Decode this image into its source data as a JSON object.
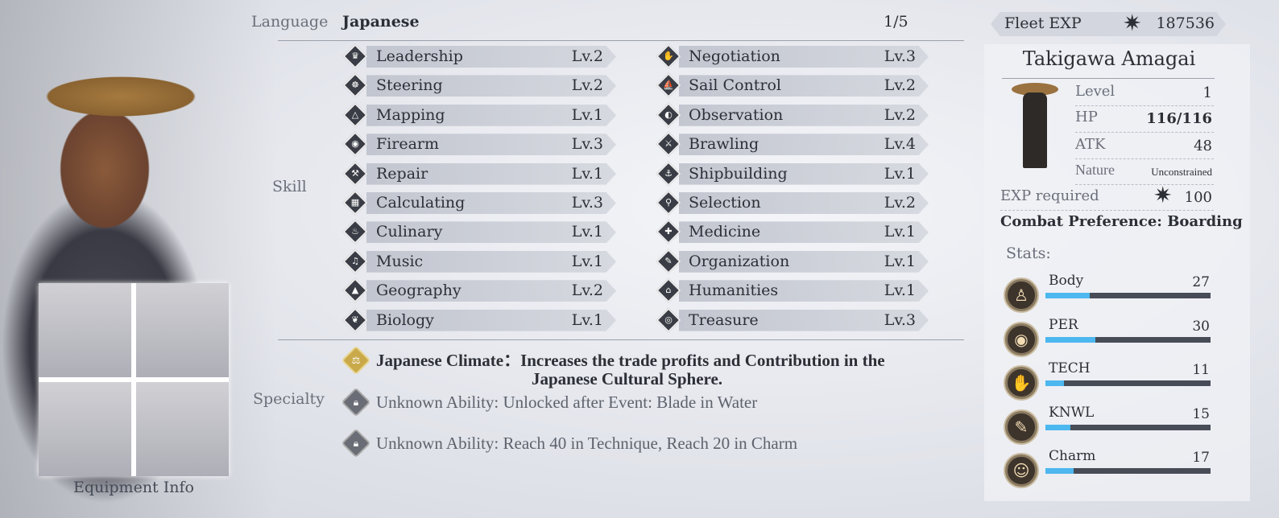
{
  "language": {
    "label": "Language",
    "value": "Japanese",
    "page": "1/5"
  },
  "skill_label": "Skill",
  "skills_left": [
    {
      "name": "Leadership",
      "level": "Lv.2",
      "icon": "leadership-icon",
      "glyph": "♛"
    },
    {
      "name": "Steering",
      "level": "Lv.2",
      "icon": "ship-wheel-icon",
      "glyph": "☸"
    },
    {
      "name": "Mapping",
      "level": "Lv.1",
      "icon": "sextant-icon",
      "glyph": "△"
    },
    {
      "name": "Firearm",
      "level": "Lv.3",
      "icon": "cannon-icon",
      "glyph": "◉"
    },
    {
      "name": "Repair",
      "level": "Lv.1",
      "icon": "hammer-icon",
      "glyph": "⚒"
    },
    {
      "name": "Calculating",
      "level": "Lv.3",
      "icon": "abacus-icon",
      "glyph": "▦"
    },
    {
      "name": "Culinary",
      "level": "Lv.1",
      "icon": "chef-hat-icon",
      "glyph": "♨"
    },
    {
      "name": "Music",
      "level": "Lv.1",
      "icon": "harp-icon",
      "glyph": "♫"
    },
    {
      "name": "Geography",
      "level": "Lv.2",
      "icon": "mountain-icon",
      "glyph": "▲"
    },
    {
      "name": "Biology",
      "level": "Lv.1",
      "icon": "leaf-icon",
      "glyph": "❦"
    }
  ],
  "skills_right": [
    {
      "name": "Negotiation",
      "level": "Lv.3",
      "icon": "handshake-icon",
      "glyph": "✋"
    },
    {
      "name": "Sail Control",
      "level": "Lv.2",
      "icon": "sail-icon",
      "glyph": "⛵"
    },
    {
      "name": "Observation",
      "level": "Lv.2",
      "icon": "telescope-icon",
      "glyph": "◐"
    },
    {
      "name": "Brawling",
      "level": "Lv.4",
      "icon": "crossed-swords-icon",
      "glyph": "⚔"
    },
    {
      "name": "Shipbuilding",
      "level": "Lv.1",
      "icon": "ship-icon",
      "glyph": "⚓"
    },
    {
      "name": "Selection",
      "level": "Lv.2",
      "icon": "magnifier-icon",
      "glyph": "⚲"
    },
    {
      "name": "Medicine",
      "level": "Lv.1",
      "icon": "medical-cross-icon",
      "glyph": "✚"
    },
    {
      "name": "Organization",
      "level": "Lv.1",
      "icon": "quill-icon",
      "glyph": "✎"
    },
    {
      "name": "Humanities",
      "level": "Lv.1",
      "icon": "temple-icon",
      "glyph": "⌂"
    },
    {
      "name": "Treasure",
      "level": "Lv.3",
      "icon": "ring-icon",
      "glyph": "◎"
    }
  ],
  "specialty_label": "Specialty",
  "specialties": [
    {
      "title": "Japanese Climate：",
      "desc": "Increases the trade profits and Contribution in the",
      "desc2": "Japanese Cultural Sphere.",
      "icon": "scales-icon",
      "locked": false
    },
    {
      "title": "Unknown Ability: ",
      "desc": "Unlocked after Event:  Blade in Water",
      "desc2": "",
      "icon": "lock-icon",
      "locked": true
    },
    {
      "title": "Unknown Ability: ",
      "desc": "Reach 40 in Technique, Reach 20 in Charm",
      "desc2": "",
      "icon": "lock-icon",
      "locked": true
    }
  ],
  "equipment_label": "Equipment Info",
  "fleet_exp": {
    "label": "Fleet EXP",
    "value": "187536"
  },
  "character": {
    "name": "Takigawa Amagai",
    "level_label": "Level",
    "level": "1",
    "hp_label": "HP",
    "hp": "116/116",
    "atk_label": "ATK",
    "atk": "48",
    "nature_label": "Nature",
    "nature": "Unconstrained",
    "exp_required_label": "EXP required",
    "exp_required": "100",
    "combat_preference": "Combat Preference: Boarding"
  },
  "stats_label": "Stats:",
  "stats": [
    {
      "name": "Body",
      "value": 27,
      "icon": "body-icon",
      "glyph": "♙"
    },
    {
      "name": "PER",
      "value": 30,
      "icon": "eye-icon",
      "glyph": "◉"
    },
    {
      "name": "TECH",
      "value": 11,
      "icon": "hand-icon",
      "glyph": "✋"
    },
    {
      "name": "KNWL",
      "value": 15,
      "icon": "book-icon",
      "glyph": "✎"
    },
    {
      "name": "Charm",
      "value": 17,
      "icon": "masks-icon",
      "glyph": "☺"
    }
  ],
  "stat_max": 100,
  "colors": {
    "stat_bar_fill": "#4db7ef",
    "stat_bar_track": "#474c57",
    "specialty_icon_active": "#c9a94a"
  }
}
